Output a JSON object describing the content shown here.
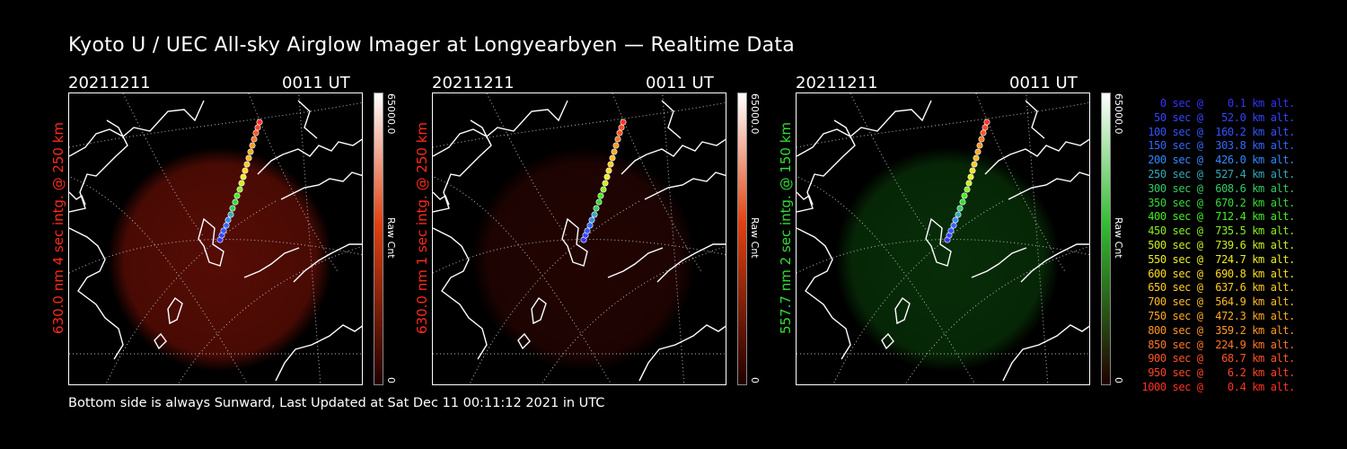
{
  "title": "Kyoto U / UEC All-sky Airglow Imager at Longyearbyen — Realtime Data",
  "footer": "Bottom side is always Sunward, Last Updated at Sat Dec 11 00:11:12 2021 in UTC",
  "panels": [
    {
      "date": "20211211",
      "time": "0011  UT",
      "ylabel": "630.0 nm  4 sec intg. @ 250 km",
      "label_color": "#ff2a1a",
      "glow_color": "#8a1408",
      "glow_opacity": 0.62,
      "cbar_max": "65000.0",
      "cbar_min": "0",
      "cbar_label": "Raw Cnt",
      "cbar_top_color": "#e04010"
    },
    {
      "date": "20211211",
      "time": "0011  UT",
      "ylabel": "630.0 nm  1 sec intg. @ 250 km",
      "label_color": "#ff2a1a",
      "glow_color": "#6a0e06",
      "glow_opacity": 0.32,
      "cbar_max": "65000.0",
      "cbar_min": "0",
      "cbar_label": "Raw Cnt",
      "cbar_top_color": "#e04010"
    },
    {
      "date": "20211211",
      "time": "0011  UT",
      "ylabel": "557.7 nm  2 sec intg. @ 150 km",
      "label_color": "#33dd33",
      "glow_color": "#0f5a0f",
      "glow_opacity": 0.5,
      "cbar_max": "65000.0",
      "cbar_min": "0",
      "cbar_label": "Raw Cnt",
      "cbar_top_color": "#33bb33"
    }
  ],
  "legend": [
    {
      "text": "   0 sec @    0.1 km alt.",
      "color": "#3333ff"
    },
    {
      "text": "  50 sec @   52.0 km alt.",
      "color": "#3344ff"
    },
    {
      "text": " 100 sec @  160.2 km alt.",
      "color": "#3355ff"
    },
    {
      "text": " 150 sec @  303.8 km alt.",
      "color": "#3366ff"
    },
    {
      "text": " 200 sec @  426.0 km alt.",
      "color": "#3388ff"
    },
    {
      "text": " 250 sec @  527.4 km alt.",
      "color": "#33aabb"
    },
    {
      "text": " 300 sec @  608.6 km alt.",
      "color": "#33cc66"
    },
    {
      "text": " 350 sec @  670.2 km alt.",
      "color": "#33dd33"
    },
    {
      "text": " 400 sec @  712.4 km alt.",
      "color": "#44ee22"
    },
    {
      "text": " 450 sec @  735.5 km alt.",
      "color": "#88ee22"
    },
    {
      "text": " 500 sec @  739.6 km alt.",
      "color": "#ccee22"
    },
    {
      "text": " 550 sec @  724.7 km alt.",
      "color": "#eeee22"
    },
    {
      "text": " 600 sec @  690.8 km alt.",
      "color": "#ffdd22"
    },
    {
      "text": " 650 sec @  637.6 km alt.",
      "color": "#ffcc22"
    },
    {
      "text": " 700 sec @  564.9 km alt.",
      "color": "#ffbb22"
    },
    {
      "text": " 750 sec @  472.3 km alt.",
      "color": "#ffaa22"
    },
    {
      "text": " 800 sec @  359.2 km alt.",
      "color": "#ff9922"
    },
    {
      "text": " 850 sec @  224.9 km alt.",
      "color": "#ff7722"
    },
    {
      "text": " 900 sec @   68.7 km alt.",
      "color": "#ff5522"
    },
    {
      "text": " 950 sec @    6.2 km alt.",
      "color": "#ff4422"
    },
    {
      "text": "1000 sec @    0.4 km alt.",
      "color": "#ff3322"
    }
  ]
}
